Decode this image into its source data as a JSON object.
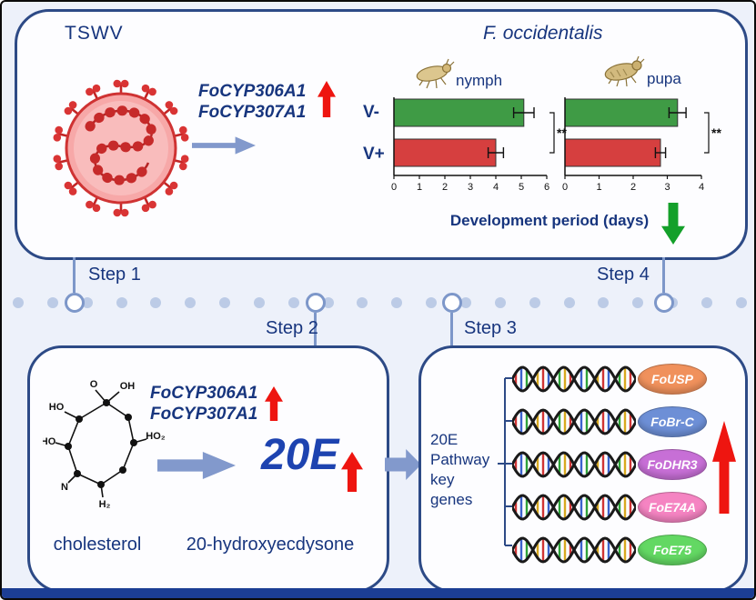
{
  "colors": {
    "navy_text": "#17357e",
    "panel_border": "#2d4a86",
    "background": "#edf1fa",
    "green_bar": "#3f9b45",
    "red_bar": "#d63f3f",
    "steel_arrow": "#8299cc",
    "red_arrow": "#ee1510",
    "green_arrow": "#14a02a",
    "timeline_dot": "#bccbe6"
  },
  "top_panel": {
    "virus_label": "TSWV",
    "genes": [
      "FoCYP306A1",
      "FoCYP307A1"
    ],
    "species_title": "F. occidentalis",
    "xaxis_label": "Development period (days)"
  },
  "steps": [
    "Step 1",
    "Step 2",
    "Step 3",
    "Step 4"
  ],
  "bottom_left": {
    "genes": [
      "FoCYP306A1",
      "FoCYP307A1"
    ],
    "product": "20E",
    "substrate_label": "cholesterol",
    "product_label": "20-hydroxyecdysone",
    "molecule_labels": [
      "O",
      "OH",
      "HO",
      "HO",
      "HO₂",
      "N",
      "H₂"
    ]
  },
  "bottom_right": {
    "pathway_label": "20E\nPathway\nkey\ngenes",
    "genes": [
      {
        "name": "FoUSP",
        "color": "#f0915c"
      },
      {
        "name": "FoBr-C",
        "color": "#6d8fd6"
      },
      {
        "name": "FoDHR3",
        "color": "#c76fd6"
      },
      {
        "name": "FoE74A",
        "color": "#f584c2"
      },
      {
        "name": "FoE75",
        "color": "#63d863"
      }
    ]
  },
  "chart_data": [
    {
      "type": "bar",
      "orientation": "horizontal",
      "title": "nymph",
      "categories": [
        "V-",
        "V+"
      ],
      "values": [
        5.1,
        4.0
      ],
      "errors": [
        0.4,
        0.3
      ],
      "colors": [
        "#3f9b45",
        "#d63f3f"
      ],
      "xlim": [
        0,
        6
      ],
      "xticks": [
        0,
        1,
        2,
        3,
        4,
        5,
        6
      ],
      "significance": "**",
      "xlabel": "Development period (days)"
    },
    {
      "type": "bar",
      "orientation": "horizontal",
      "title": "pupa",
      "categories": [
        "V-",
        "V+"
      ],
      "values": [
        3.3,
        2.8
      ],
      "errors": [
        0.25,
        0.15
      ],
      "colors": [
        "#3f9b45",
        "#d63f3f"
      ],
      "xlim": [
        0,
        4
      ],
      "xticks": [
        0,
        1,
        2,
        3,
        4
      ],
      "significance": "**",
      "xlabel": "Development period (days)"
    }
  ]
}
